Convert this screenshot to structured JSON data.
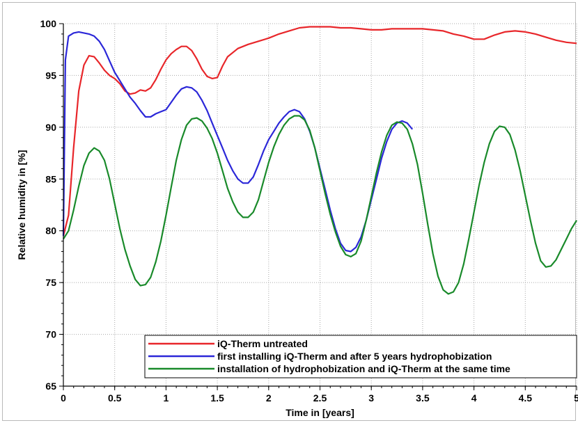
{
  "chart_data": {
    "type": "line",
    "xlabel": "Time in [years]",
    "ylabel": "Relative humidity in [%]",
    "xlim": [
      0,
      5
    ],
    "ylim": [
      65,
      100
    ],
    "x_ticks": [
      "0",
      "0.5",
      "1",
      "1.5",
      "2",
      "2.5",
      "3",
      "3.5",
      "4",
      "4.5",
      "5"
    ],
    "y_ticks": [
      "65",
      "70",
      "75",
      "80",
      "85",
      "90",
      "95",
      "100"
    ],
    "grid": true,
    "legend_position": "bottom-right",
    "series": [
      {
        "name": "iQ-Therm untreated",
        "color": "#e8262a",
        "x": [
          0,
          0.05,
          0.1,
          0.15,
          0.2,
          0.25,
          0.3,
          0.35,
          0.4,
          0.45,
          0.5,
          0.55,
          0.6,
          0.65,
          0.7,
          0.75,
          0.8,
          0.85,
          0.9,
          0.95,
          1.0,
          1.05,
          1.1,
          1.15,
          1.2,
          1.25,
          1.3,
          1.35,
          1.4,
          1.45,
          1.5,
          1.55,
          1.6,
          1.7,
          1.8,
          1.9,
          2.0,
          2.1,
          2.2,
          2.3,
          2.4,
          2.5,
          2.6,
          2.7,
          2.8,
          2.9,
          3.0,
          3.1,
          3.2,
          3.3,
          3.4,
          3.5,
          3.6,
          3.7,
          3.8,
          3.9,
          4.0,
          4.1,
          4.2,
          4.3,
          4.4,
          4.5,
          4.6,
          4.7,
          4.8,
          4.9,
          5.0
        ],
        "y": [
          79.5,
          81.5,
          88.0,
          93.5,
          96.0,
          96.9,
          96.8,
          96.2,
          95.5,
          95.0,
          94.7,
          94.2,
          93.5,
          93.2,
          93.3,
          93.6,
          93.5,
          93.8,
          94.6,
          95.6,
          96.5,
          97.1,
          97.5,
          97.8,
          97.8,
          97.4,
          96.6,
          95.6,
          94.9,
          94.7,
          94.8,
          95.9,
          96.8,
          97.6,
          98.0,
          98.3,
          98.6,
          99.0,
          99.3,
          99.6,
          99.7,
          99.7,
          99.7,
          99.6,
          99.6,
          99.5,
          99.4,
          99.4,
          99.5,
          99.5,
          99.5,
          99.5,
          99.4,
          99.3,
          99.0,
          98.8,
          98.5,
          98.5,
          98.9,
          99.2,
          99.3,
          99.2,
          99.0,
          98.7,
          98.4,
          98.2,
          98.1
        ]
      },
      {
        "name": "first installing iQ-Therm and after 5 years hydrophobization",
        "color": "#2b27d8",
        "x": [
          0,
          0.02,
          0.05,
          0.1,
          0.15,
          0.2,
          0.25,
          0.3,
          0.35,
          0.4,
          0.45,
          0.5,
          0.55,
          0.6,
          0.65,
          0.7,
          0.75,
          0.8,
          0.85,
          0.9,
          0.95,
          1.0,
          1.05,
          1.1,
          1.15,
          1.2,
          1.25,
          1.3,
          1.35,
          1.4,
          1.45,
          1.5,
          1.55,
          1.6,
          1.65,
          1.7,
          1.75,
          1.8,
          1.85,
          1.9,
          1.95,
          2.0,
          2.05,
          2.1,
          2.15,
          2.2,
          2.25,
          2.3,
          2.35,
          2.4,
          2.45,
          2.5,
          2.55,
          2.6,
          2.65,
          2.7,
          2.75,
          2.8,
          2.85,
          2.9,
          2.95,
          3.0,
          3.05,
          3.1,
          3.15,
          3.2,
          3.25,
          3.3,
          3.35,
          3.4
        ],
        "y": [
          79.5,
          96.5,
          98.8,
          99.1,
          99.2,
          99.1,
          99.0,
          98.8,
          98.3,
          97.5,
          96.4,
          95.3,
          94.5,
          93.7,
          92.9,
          92.3,
          91.6,
          91.0,
          91.0,
          91.3,
          91.5,
          91.7,
          92.4,
          93.1,
          93.7,
          93.9,
          93.8,
          93.4,
          92.6,
          91.6,
          90.4,
          89.2,
          88.0,
          86.8,
          85.8,
          85.0,
          84.6,
          84.6,
          85.2,
          86.4,
          87.7,
          88.8,
          89.6,
          90.4,
          91.0,
          91.5,
          91.7,
          91.5,
          90.8,
          89.6,
          88.0,
          86.0,
          84.0,
          82.0,
          80.2,
          78.8,
          78.1,
          78.0,
          78.4,
          79.4,
          81.0,
          83.0,
          85.0,
          87.0,
          88.6,
          89.8,
          90.4,
          90.6,
          90.4,
          89.8
        ]
      },
      {
        "name": "installation of hydrophobization and iQ-Therm at the same time",
        "color": "#198a2a",
        "x": [
          0,
          0.05,
          0.1,
          0.15,
          0.2,
          0.25,
          0.3,
          0.35,
          0.4,
          0.45,
          0.5,
          0.55,
          0.6,
          0.65,
          0.7,
          0.75,
          0.8,
          0.85,
          0.9,
          0.95,
          1.0,
          1.05,
          1.1,
          1.15,
          1.2,
          1.25,
          1.3,
          1.35,
          1.4,
          1.45,
          1.5,
          1.55,
          1.6,
          1.65,
          1.7,
          1.75,
          1.8,
          1.85,
          1.9,
          1.95,
          2.0,
          2.05,
          2.1,
          2.15,
          2.2,
          2.25,
          2.3,
          2.35,
          2.4,
          2.45,
          2.5,
          2.55,
          2.6,
          2.65,
          2.7,
          2.75,
          2.8,
          2.85,
          2.9,
          2.95,
          3.0,
          3.05,
          3.1,
          3.15,
          3.2,
          3.25,
          3.3,
          3.35,
          3.4,
          3.45,
          3.5,
          3.55,
          3.6,
          3.65,
          3.7,
          3.75,
          3.8,
          3.85,
          3.9,
          3.95,
          4.0,
          4.05,
          4.1,
          4.15,
          4.2,
          4.25,
          4.3,
          4.35,
          4.4,
          4.45,
          4.5,
          4.55,
          4.6,
          4.65,
          4.7,
          4.75,
          4.8,
          4.85,
          4.9,
          4.95,
          5.0
        ],
        "y": [
          79.2,
          80.0,
          82.0,
          84.3,
          86.3,
          87.5,
          88.0,
          87.7,
          86.8,
          85.0,
          82.6,
          80.2,
          78.2,
          76.6,
          75.3,
          74.7,
          74.8,
          75.5,
          77.0,
          79.0,
          81.5,
          84.2,
          86.8,
          88.8,
          90.2,
          90.8,
          90.9,
          90.6,
          89.9,
          88.9,
          87.5,
          85.8,
          84.1,
          82.8,
          81.8,
          81.3,
          81.3,
          81.8,
          83.0,
          84.8,
          86.6,
          88.1,
          89.3,
          90.2,
          90.8,
          91.1,
          91.1,
          90.7,
          89.7,
          88.0,
          85.8,
          83.6,
          81.6,
          79.9,
          78.5,
          77.7,
          77.5,
          77.8,
          79.0,
          81.0,
          83.3,
          85.6,
          87.6,
          89.2,
          90.2,
          90.5,
          90.4,
          89.8,
          88.4,
          86.4,
          83.6,
          80.6,
          77.8,
          75.6,
          74.3,
          73.9,
          74.1,
          75.0,
          76.8,
          79.2,
          81.8,
          84.4,
          86.6,
          88.4,
          89.6,
          90.1,
          90.0,
          89.3,
          87.8,
          85.8,
          83.4,
          81.0,
          78.8,
          77.1,
          76.5,
          76.6,
          77.2,
          78.2,
          79.2,
          80.2,
          81.0
        ]
      }
    ]
  }
}
